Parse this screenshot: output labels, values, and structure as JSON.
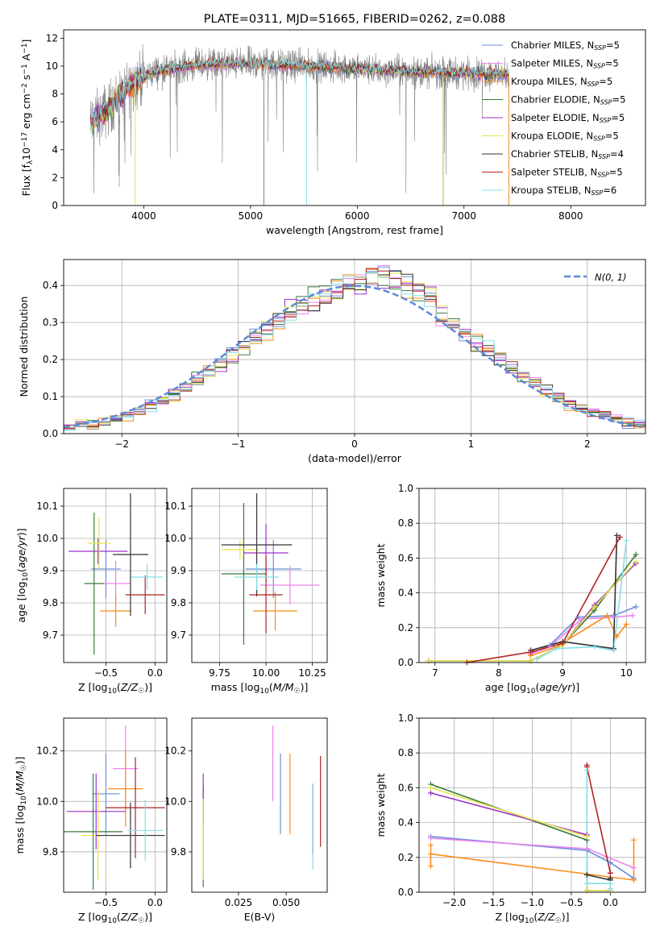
{
  "figure": {
    "title": "PLATE=0311, MJD=51665, FIBERID=0262, z=0.088"
  },
  "chart_data": [
    {
      "id": "spectrum",
      "type": "line",
      "xlabel": "wavelength [Angstrom, rest frame]",
      "ylabel": "Flux [fλ10⁻¹⁷ erg cm⁻² s⁻¹ A⁻¹]",
      "xlim": [
        3250,
        8700
      ],
      "ylim": [
        0,
        12.6
      ],
      "xticks": [
        4000,
        5000,
        6000,
        7000,
        8000
      ],
      "yticks": [
        0,
        2,
        4,
        6,
        8,
        10,
        12
      ],
      "data_color": "#808080",
      "continuum": {
        "x": [
          3500,
          3600,
          3700,
          3800,
          3900,
          4000,
          4100,
          4300,
          4500,
          5000,
          5500,
          6000,
          6500,
          7000,
          7400
        ],
        "y": [
          6.0,
          6.5,
          7.2,
          8.0,
          8.8,
          9.2,
          9.6,
          9.9,
          10.1,
          10.2,
          10.0,
          9.8,
          9.6,
          9.5,
          9.4
        ]
      },
      "legend_placement": "right",
      "legend": [
        {
          "label": "Chabrier MILES, N",
          "sub": "SSP",
          "suffix": "=5",
          "color": "#6b8fd8"
        },
        {
          "label": "Salpeter MILES, N",
          "sub": "SSP",
          "suffix": "=5",
          "color": "#ee82ee"
        },
        {
          "label": "Kroupa MILES, N",
          "sub": "SSP",
          "suffix": "=5",
          "color": "#ff8c1a"
        },
        {
          "label": "Chabrier ELODIE, N",
          "sub": "SSP",
          "suffix": "=5",
          "color": "#3a7a3a"
        },
        {
          "label": "Salpeter ELODIE, N",
          "sub": "SSP",
          "suffix": "=5",
          "color": "#9b30c8"
        },
        {
          "label": "Kroupa ELODIE, N",
          "sub": "SSP",
          "suffix": "=5",
          "color": "#e6e64d"
        },
        {
          "label": "Chabrier STELIB, N",
          "sub": "SSP",
          "suffix": "=4",
          "color": "#333333"
        },
        {
          "label": "Salpeter STELIB, N",
          "sub": "SSP",
          "suffix": "=5",
          "color": "#b22222"
        },
        {
          "label": "Kroupa STELIB, N",
          "sub": "SSP",
          "suffix": "=6",
          "color": "#87dde8"
        }
      ]
    },
    {
      "id": "residual-hist",
      "type": "line",
      "xlabel": "(data-model)/error",
      "ylabel": "Normed distribution",
      "xlim": [
        -2.5,
        2.5
      ],
      "ylim": [
        0,
        0.47
      ],
      "xticks": [
        -2,
        -1,
        0,
        1,
        2
      ],
      "yticks": [
        0.0,
        0.1,
        0.2,
        0.3,
        0.4
      ],
      "grid": true,
      "legend_placement": "top-right",
      "reference_curve": {
        "label": "N(0, 1)",
        "color": "#5a8ad8",
        "style": "dashed"
      },
      "bin_width": 0.1,
      "bins_start": -2.5
    },
    {
      "id": "age-vs-Z",
      "type": "scatter",
      "xlabel": "Z [log10(Z/Z☉)]",
      "ylabel": "age  [log10(age/yr)]",
      "xlim": [
        -0.93,
        0.12
      ],
      "ylim": [
        9.615,
        10.155
      ],
      "xticks": [
        -0.5,
        0.0
      ],
      "yticks": [
        9.7,
        9.8,
        9.9,
        10.0,
        10.1
      ],
      "grid": true,
      "points": [
        {
          "model": "Chabrier MILES",
          "x": -0.5,
          "xerr": 0.15,
          "y": 9.905,
          "yerr": 0.09
        },
        {
          "model": "Salpeter MILES",
          "x": -0.4,
          "xerr": 0.15,
          "y": 9.86,
          "yerr": 0.07
        },
        {
          "model": "Kroupa MILES",
          "x": -0.4,
          "xerr": 0.16,
          "y": 9.775,
          "yerr": 0.05
        },
        {
          "model": "Chabrier ELODIE",
          "x": -0.62,
          "xerr": 0.1,
          "y": 9.86,
          "yerr": 0.22
        },
        {
          "model": "Salpeter ELODIE",
          "x": -0.58,
          "xerr": 0.3,
          "y": 9.96,
          "yerr": 0.04
        },
        {
          "model": "Kroupa ELODIE",
          "x": -0.57,
          "xerr": 0.12,
          "y": 9.985,
          "yerr": 0.08
        },
        {
          "model": "Chabrier STELIB",
          "x": -0.25,
          "xerr": 0.18,
          "y": 9.95,
          "yerr": 0.19
        },
        {
          "model": "Salpeter STELIB",
          "x": -0.1,
          "xerr": 0.2,
          "y": 9.825,
          "yerr": 0.06
        },
        {
          "model": "Kroupa STELIB",
          "x": -0.08,
          "xerr": 0.16,
          "y": 9.88,
          "yerr": 0.04
        }
      ]
    },
    {
      "id": "age-vs-mass",
      "type": "scatter",
      "xlabel": "mass [log10(M/M☉)]",
      "ylabel": "",
      "xlim": [
        9.6,
        10.33
      ],
      "ylim": [
        9.615,
        10.155
      ],
      "xticks": [
        9.75,
        10.0,
        10.25
      ],
      "yticks": [
        9.7,
        9.8,
        9.9,
        10.0,
        10.1
      ],
      "grid": true,
      "points": [
        {
          "model": "Chabrier MILES",
          "x": 10.04,
          "xerr": 0.15,
          "y": 9.905,
          "yerr": 0.09
        },
        {
          "model": "Salpeter MILES",
          "x": 10.13,
          "xerr": 0.16,
          "y": 9.855,
          "yerr": 0.06
        },
        {
          "model": "Kroupa MILES",
          "x": 10.05,
          "xerr": 0.12,
          "y": 9.775,
          "yerr": 0.06
        },
        {
          "model": "Chabrier ELODIE",
          "x": 9.88,
          "xerr": 0.12,
          "y": 9.89,
          "yerr": 0.22
        },
        {
          "model": "Salpeter ELODIE",
          "x": 10.0,
          "xerr": 0.12,
          "y": 9.955,
          "yerr": 0.09
        },
        {
          "model": "Kroupa ELODIE",
          "x": 9.86,
          "xerr": 0.1,
          "y": 9.965,
          "yerr": 0.03
        },
        {
          "model": "Chabrier STELIB",
          "x": 9.95,
          "xerr": 0.19,
          "y": 9.98,
          "yerr": 0.16
        },
        {
          "model": "Salpeter STELIB",
          "x": 10.0,
          "xerr": 0.09,
          "y": 9.825,
          "yerr": 0.12
        },
        {
          "model": "Kroupa STELIB",
          "x": 9.95,
          "xerr": 0.12,
          "y": 9.88,
          "yerr": 0.04
        }
      ]
    },
    {
      "id": "massweight-vs-age",
      "type": "line",
      "xlabel": "age  [log10(age/yr)]",
      "ylabel": "mass weight",
      "xlim": [
        6.75,
        10.3
      ],
      "ylim": [
        0,
        1
      ],
      "xticks": [
        7,
        8,
        9,
        10
      ],
      "yticks": [
        0.0,
        0.2,
        0.4,
        0.6,
        0.8,
        1.0
      ],
      "grid": true,
      "series": [
        {
          "model": "Chabrier MILES",
          "x": [
            8.5,
            8.8,
            9.25,
            9.8,
            10.15
          ],
          "y": [
            0.05,
            0.1,
            0.26,
            0.27,
            0.32
          ]
        },
        {
          "model": "Salpeter MILES",
          "x": [
            8.5,
            8.8,
            9.3,
            9.8,
            10.1
          ],
          "y": [
            0.05,
            0.09,
            0.25,
            0.26,
            0.27
          ]
        },
        {
          "model": "Kroupa MILES",
          "x": [
            8.5,
            8.9,
            9.7,
            9.85,
            10.0
          ],
          "y": [
            0.04,
            0.09,
            0.27,
            0.15,
            0.22
          ]
        },
        {
          "model": "Chabrier ELODIE",
          "x": [
            6.9,
            8.5,
            9.0,
            9.5,
            10.15
          ],
          "y": [
            0.01,
            0.01,
            0.1,
            0.3,
            0.62
          ]
        },
        {
          "model": "Salpeter ELODIE",
          "x": [
            6.9,
            8.5,
            9.0,
            9.5,
            10.15
          ],
          "y": [
            0.01,
            0.01,
            0.1,
            0.33,
            0.57
          ]
        },
        {
          "model": "Kroupa ELODIE",
          "x": [
            6.9,
            8.5,
            9.0,
            9.5,
            10.15
          ],
          "y": [
            0.01,
            0.01,
            0.1,
            0.32,
            0.58
          ]
        },
        {
          "model": "Chabrier STELIB",
          "x": [
            8.5,
            9.0,
            9.8,
            9.85
          ],
          "y": [
            0.07,
            0.12,
            0.08,
            0.73
          ]
        },
        {
          "model": "Salpeter STELIB",
          "x": [
            7.5,
            8.5,
            9.0,
            9.9
          ],
          "y": [
            0.0,
            0.06,
            0.11,
            0.72
          ]
        },
        {
          "model": "Kroupa STELIB",
          "x": [
            8.6,
            8.9,
            9.5,
            9.8,
            10.0
          ],
          "y": [
            0.02,
            0.08,
            0.09,
            0.07,
            0.7
          ]
        }
      ]
    },
    {
      "id": "mass-vs-Z",
      "type": "scatter",
      "xlabel": "Z [log10(Z/Z☉)]",
      "ylabel": "mass [log10(M/M☉)]",
      "xlim": [
        -0.93,
        0.12
      ],
      "ylim": [
        9.64,
        10.33
      ],
      "xticks": [
        -0.5,
        0.0
      ],
      "yticks": [
        9.8,
        10.0,
        10.2
      ],
      "grid": true,
      "points": [
        {
          "model": "Chabrier MILES",
          "x": -0.5,
          "xerr": 0.14,
          "y": 10.03,
          "yerr": 0.16
        },
        {
          "model": "Salpeter MILES",
          "x": -0.3,
          "xerr": 0.13,
          "y": 10.13,
          "yerr": 0.17
        },
        {
          "model": "Kroupa MILES",
          "x": -0.3,
          "xerr": 0.18,
          "y": 10.05,
          "yerr": 0.15
        },
        {
          "model": "Chabrier ELODIE",
          "x": -0.63,
          "xerr": 0.3,
          "y": 9.88,
          "yerr": 0.23
        },
        {
          "model": "Salpeter ELODIE",
          "x": -0.6,
          "xerr": 0.3,
          "y": 9.96,
          "yerr": 0.15
        },
        {
          "model": "Kroupa ELODIE",
          "x": -0.58,
          "xerr": 0.17,
          "y": 9.865,
          "yerr": 0.18
        },
        {
          "model": "Chabrier STELIB",
          "x": -0.25,
          "xerr": 0.35,
          "y": 9.865,
          "yerr": 0.13
        },
        {
          "model": "Salpeter STELIB",
          "x": -0.2,
          "xerr": 0.3,
          "y": 9.975,
          "yerr": 0.2
        },
        {
          "model": "Kroupa STELIB",
          "x": -0.1,
          "xerr": 0.18,
          "y": 9.885,
          "yerr": 0.12
        }
      ]
    },
    {
      "id": "mass-vs-EBV",
      "type": "scatter",
      "xlabel": "E(B-V)",
      "ylabel": "",
      "xlim": [
        0.0005,
        0.0715
      ],
      "ylim": [
        9.64,
        10.33
      ],
      "xticks": [
        0.025,
        0.05
      ],
      "yticks": [
        9.8,
        10.0,
        10.2
      ],
      "points": [
        {
          "model": "Chabrier MILES",
          "x": 0.047,
          "y": 10.03,
          "yerr": 0.16
        },
        {
          "model": "Salpeter MILES",
          "x": 0.043,
          "y": 10.15,
          "yerr": 0.15
        },
        {
          "model": "Kroupa MILES",
          "x": 0.052,
          "y": 10.03,
          "yerr": 0.16
        },
        {
          "model": "Chabrier ELODIE",
          "x": 0.0065,
          "y": 9.86,
          "yerr": 0.2
        },
        {
          "model": "Salpeter ELODIE",
          "x": 0.0065,
          "y": 10.01,
          "yerr": 0.1
        },
        {
          "model": "Kroupa ELODIE",
          "x": 0.0065,
          "y": 9.85,
          "yerr": 0.16
        },
        {
          "model": "Chabrier STELIB",
          "x": 0.064,
          "y": 9.93,
          "yerr": 0.14
        },
        {
          "model": "Salpeter STELIB",
          "x": 0.068,
          "y": 10.0,
          "yerr": 0.18
        },
        {
          "model": "Kroupa STELIB",
          "x": 0.064,
          "y": 9.9,
          "yerr": 0.17
        }
      ]
    },
    {
      "id": "massweight-vs-Z",
      "type": "line",
      "xlabel": "Z [log10(Z/Z☉)]",
      "ylabel": "mass weight",
      "xlim": [
        -2.45,
        0.45
      ],
      "ylim": [
        0,
        1
      ],
      "xticks": [
        -2.0,
        -1.5,
        -1.0,
        -0.5,
        0.0
      ],
      "yticks": [
        0.0,
        0.2,
        0.4,
        0.6,
        0.8,
        1.0
      ],
      "grid": true,
      "series": [
        {
          "model": "Chabrier MILES",
          "x": [
            -2.3,
            -0.3,
            0.0,
            0.3
          ],
          "y": [
            0.32,
            0.24,
            0.17,
            0.08
          ]
        },
        {
          "model": "Salpeter MILES",
          "x": [
            -2.3,
            -0.3,
            0.3
          ],
          "y": [
            0.31,
            0.25,
            0.14
          ]
        },
        {
          "model": "Kroupa MILES",
          "x": [
            -2.3,
            -2.3,
            -2.3,
            0.3,
            0.3,
            0.3
          ],
          "y": [
            0.15,
            0.27,
            0.22,
            0.07,
            0.3,
            0.07
          ]
        },
        {
          "model": "Chabrier ELODIE",
          "x": [
            -2.3,
            -0.3,
            -0.3,
            0.0
          ],
          "y": [
            0.62,
            0.3,
            0.01,
            0.01
          ]
        },
        {
          "model": "Salpeter ELODIE",
          "x": [
            -2.3,
            -0.3,
            -0.3,
            0.0
          ],
          "y": [
            0.57,
            0.33,
            0.01,
            0.01
          ]
        },
        {
          "model": "Kroupa ELODIE",
          "x": [
            -2.3,
            -0.3,
            -0.3,
            0.0
          ],
          "y": [
            0.6,
            0.32,
            0.01,
            0.01
          ]
        },
        {
          "model": "Chabrier STELIB",
          "x": [
            -0.3,
            0.0,
            0.0
          ],
          "y": [
            0.1,
            0.07,
            0.08
          ]
        },
        {
          "model": "Salpeter STELIB",
          "x": [
            -0.3,
            -0.3,
            0.0,
            0.0
          ],
          "y": [
            0.73,
            0.72,
            0.11,
            0.11
          ]
        },
        {
          "model": "Kroupa STELIB",
          "x": [
            -0.3,
            -0.3,
            0.0,
            0.0
          ],
          "y": [
            0.7,
            0.05,
            0.05,
            0.02
          ]
        }
      ]
    }
  ]
}
